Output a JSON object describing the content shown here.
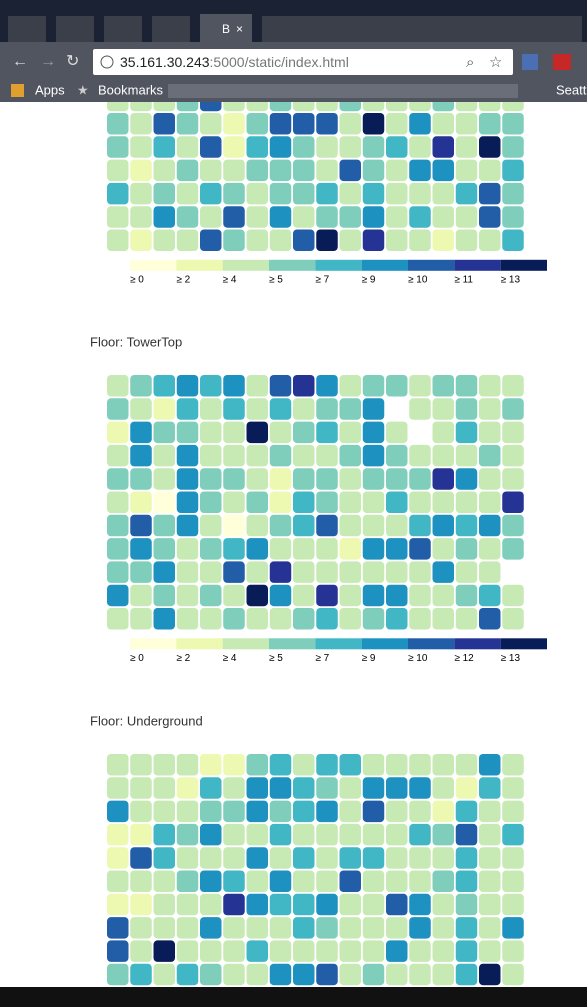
{
  "browser": {
    "active_tab": "B",
    "url_host": "35.161.30.243",
    "url_rest": ":5000/static/index.html",
    "bookmarks": [
      "Apps",
      "Bookmarks",
      "Seattl"
    ]
  },
  "colors": [
    "#ffffd9",
    "#edf8b1",
    "#c7e9b4",
    "#7fcdbb",
    "#41b6c4",
    "#1d91c0",
    "#225ea8",
    "#253494",
    "#081d58"
  ],
  "heatmaps": [
    {
      "legend": [
        "≥ 0",
        "≥ 2",
        "≥ 4",
        "≥ 5",
        "≥ 7",
        "≥ 9",
        "≥ 10",
        "≥ 11",
        "≥ 13"
      ],
      "levels": [
        [
          2,
          2,
          2,
          3,
          6,
          2,
          2,
          3,
          2,
          2,
          3,
          2,
          2,
          2,
          3,
          2,
          2,
          2
        ],
        [
          3,
          2,
          6,
          3,
          2,
          1,
          3,
          6,
          6,
          6,
          2,
          8,
          2,
          5,
          2,
          2,
          3,
          3
        ],
        [
          3,
          2,
          4,
          2,
          6,
          1,
          4,
          5,
          3,
          2,
          2,
          3,
          4,
          2,
          7,
          2,
          8,
          3
        ],
        [
          2,
          1,
          2,
          3,
          2,
          2,
          3,
          3,
          3,
          2,
          6,
          3,
          2,
          5,
          5,
          2,
          2,
          4
        ],
        [
          4,
          2,
          3,
          2,
          4,
          3,
          2,
          3,
          3,
          4,
          2,
          4,
          2,
          2,
          2,
          4,
          6,
          3
        ],
        [
          2,
          2,
          5,
          3,
          2,
          6,
          2,
          5,
          2,
          3,
          3,
          5,
          2,
          4,
          2,
          2,
          6,
          3
        ],
        [
          2,
          1,
          2,
          2,
          6,
          3,
          2,
          2,
          6,
          8,
          2,
          7,
          2,
          2,
          1,
          2,
          2,
          4
        ]
      ]
    },
    {
      "title": "Floor: TowerTop",
      "legend": [
        "≥ 0",
        "≥ 2",
        "≥ 4",
        "≥ 5",
        "≥ 7",
        "≥ 9",
        "≥ 10",
        "≥ 12",
        "≥ 13"
      ],
      "levels": [
        [
          2,
          3,
          4,
          5,
          4,
          5,
          2,
          6,
          7,
          5,
          2,
          3,
          3,
          2,
          3,
          3,
          2,
          2
        ],
        [
          3,
          2,
          1,
          4,
          2,
          4,
          2,
          4,
          2,
          3,
          3,
          5,
          null,
          2,
          2,
          3,
          2,
          3
        ],
        [
          1,
          5,
          3,
          3,
          2,
          2,
          8,
          2,
          3,
          4,
          2,
          5,
          2,
          null,
          2,
          4,
          2,
          2
        ],
        [
          2,
          5,
          2,
          5,
          2,
          2,
          2,
          3,
          2,
          2,
          3,
          5,
          3,
          2,
          2,
          2,
          3,
          2
        ],
        [
          3,
          3,
          2,
          5,
          3,
          3,
          2,
          1,
          3,
          3,
          2,
          3,
          3,
          3,
          7,
          5,
          2,
          2
        ],
        [
          2,
          1,
          0,
          5,
          3,
          2,
          3,
          1,
          4,
          3,
          2,
          2,
          4,
          2,
          2,
          2,
          2,
          7
        ],
        [
          3,
          6,
          3,
          5,
          2,
          0,
          2,
          3,
          4,
          6,
          2,
          2,
          2,
          4,
          5,
          4,
          5,
          3
        ],
        [
          3,
          5,
          3,
          2,
          3,
          4,
          5,
          2,
          2,
          2,
          1,
          5,
          5,
          6,
          2,
          3,
          2,
          3
        ],
        [
          3,
          3,
          5,
          2,
          2,
          6,
          2,
          7,
          2,
          2,
          2,
          2,
          2,
          2,
          5,
          2,
          2,
          null
        ],
        [
          5,
          2,
          3,
          2,
          3,
          2,
          8,
          5,
          2,
          7,
          2,
          5,
          5,
          2,
          2,
          3,
          4,
          2
        ],
        [
          2,
          2,
          5,
          2,
          2,
          3,
          2,
          2,
          3,
          4,
          2,
          3,
          4,
          2,
          2,
          2,
          6,
          2
        ]
      ]
    },
    {
      "title": "Floor: Underground",
      "levels": [
        [
          2,
          2,
          2,
          2,
          1,
          1,
          3,
          4,
          2,
          4,
          4,
          2,
          2,
          2,
          2,
          2,
          5,
          2
        ],
        [
          2,
          2,
          2,
          1,
          4,
          2,
          5,
          5,
          4,
          3,
          2,
          5,
          5,
          5,
          2,
          1,
          4,
          2
        ],
        [
          5,
          2,
          2,
          2,
          3,
          3,
          5,
          3,
          4,
          5,
          2,
          6,
          2,
          2,
          1,
          4,
          2,
          2
        ],
        [
          1,
          1,
          4,
          3,
          5,
          2,
          2,
          4,
          2,
          2,
          2,
          2,
          2,
          4,
          3,
          6,
          2,
          4
        ],
        [
          1,
          6,
          4,
          2,
          2,
          2,
          5,
          2,
          4,
          2,
          4,
          4,
          2,
          2,
          2,
          4,
          2,
          2
        ],
        [
          2,
          2,
          2,
          3,
          5,
          4,
          2,
          5,
          2,
          2,
          6,
          2,
          2,
          2,
          3,
          4,
          2,
          2
        ],
        [
          1,
          1,
          2,
          2,
          2,
          7,
          5,
          4,
          4,
          5,
          2,
          2,
          6,
          5,
          2,
          3,
          2,
          2
        ],
        [
          6,
          2,
          2,
          2,
          5,
          2,
          2,
          2,
          4,
          3,
          2,
          2,
          2,
          5,
          2,
          4,
          2,
          5
        ],
        [
          6,
          2,
          8,
          2,
          2,
          2,
          4,
          2,
          2,
          2,
          2,
          2,
          5,
          2,
          2,
          4,
          2,
          2
        ],
        [
          3,
          4,
          2,
          4,
          3,
          2,
          2,
          5,
          5,
          6,
          2,
          3,
          2,
          2,
          2,
          4,
          8,
          2
        ]
      ]
    }
  ]
}
